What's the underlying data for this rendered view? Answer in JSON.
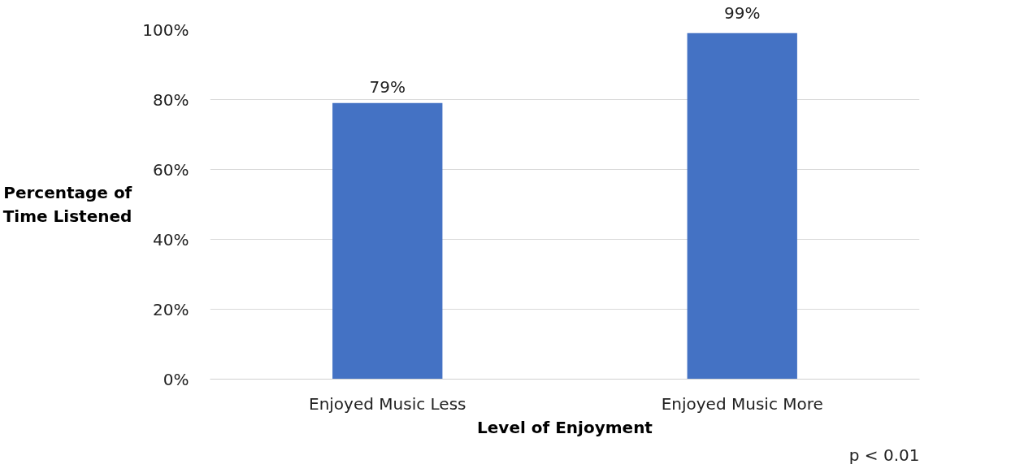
{
  "chart_data": {
    "type": "bar",
    "xlabel": "Level of Enjoyment",
    "ylabel": "Percentage of Time Listened",
    "categories": [
      "Enjoyed Music Less",
      "Enjoyed Music More"
    ],
    "values": [
      79,
      99
    ],
    "color": "#4472c4",
    "value_labels": [
      "79%",
      "99%"
    ],
    "ylim": [
      0,
      100
    ],
    "yticks": [
      {
        "value": 0,
        "label": "0%"
      },
      {
        "value": 20,
        "label": "20%"
      },
      {
        "value": 40,
        "label": "40%"
      },
      {
        "value": 60,
        "label": "60%"
      },
      {
        "value": 80,
        "label": "80%"
      },
      {
        "value": 100,
        "label": "100%"
      }
    ],
    "grid": "y",
    "annotations": [
      "p < 0.01"
    ]
  }
}
